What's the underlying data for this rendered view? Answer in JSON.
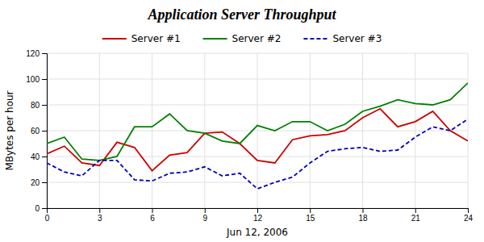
{
  "chart_data": {
    "type": "line",
    "title": "Application Server Throughput",
    "xlabel": "Jun 12, 2006",
    "ylabel": "MBytes per hour",
    "x": [
      0,
      1,
      2,
      3,
      4,
      5,
      6,
      7,
      8,
      9,
      10,
      11,
      12,
      13,
      14,
      15,
      16,
      17,
      18,
      19,
      20,
      21,
      22,
      23,
      24
    ],
    "xlim": [
      0,
      24
    ],
    "ylim": [
      0,
      120
    ],
    "xticks": [
      0,
      3,
      6,
      9,
      12,
      15,
      18,
      21,
      24
    ],
    "yticks": [
      0,
      20,
      40,
      60,
      80,
      100,
      120
    ],
    "grid": true,
    "legend": "top",
    "series": [
      {
        "name": "Server #1",
        "color": "#cc0000",
        "line_style": "solid",
        "values": [
          42,
          48,
          35,
          33,
          51,
          47,
          29,
          41,
          43,
          58,
          59,
          50,
          37,
          35,
          53,
          56,
          57,
          60,
          70,
          77,
          63,
          67,
          75,
          60,
          52
        ]
      },
      {
        "name": "Server #2",
        "color": "#008000",
        "line_style": "solid",
        "values": [
          50,
          55,
          38,
          37,
          40,
          63,
          63,
          73,
          60,
          58,
          52,
          50,
          64,
          60,
          67,
          67,
          60,
          65,
          75,
          79,
          84,
          81,
          80,
          84,
          97
        ]
      },
      {
        "name": "Server #3",
        "color": "#0000bb",
        "line_style": "dashed",
        "values": [
          35,
          28,
          25,
          37,
          37,
          22,
          21,
          27,
          28,
          32,
          25,
          27,
          15,
          20,
          24,
          35,
          44,
          46,
          47,
          44,
          45,
          55,
          63,
          60,
          69
        ]
      }
    ]
  }
}
